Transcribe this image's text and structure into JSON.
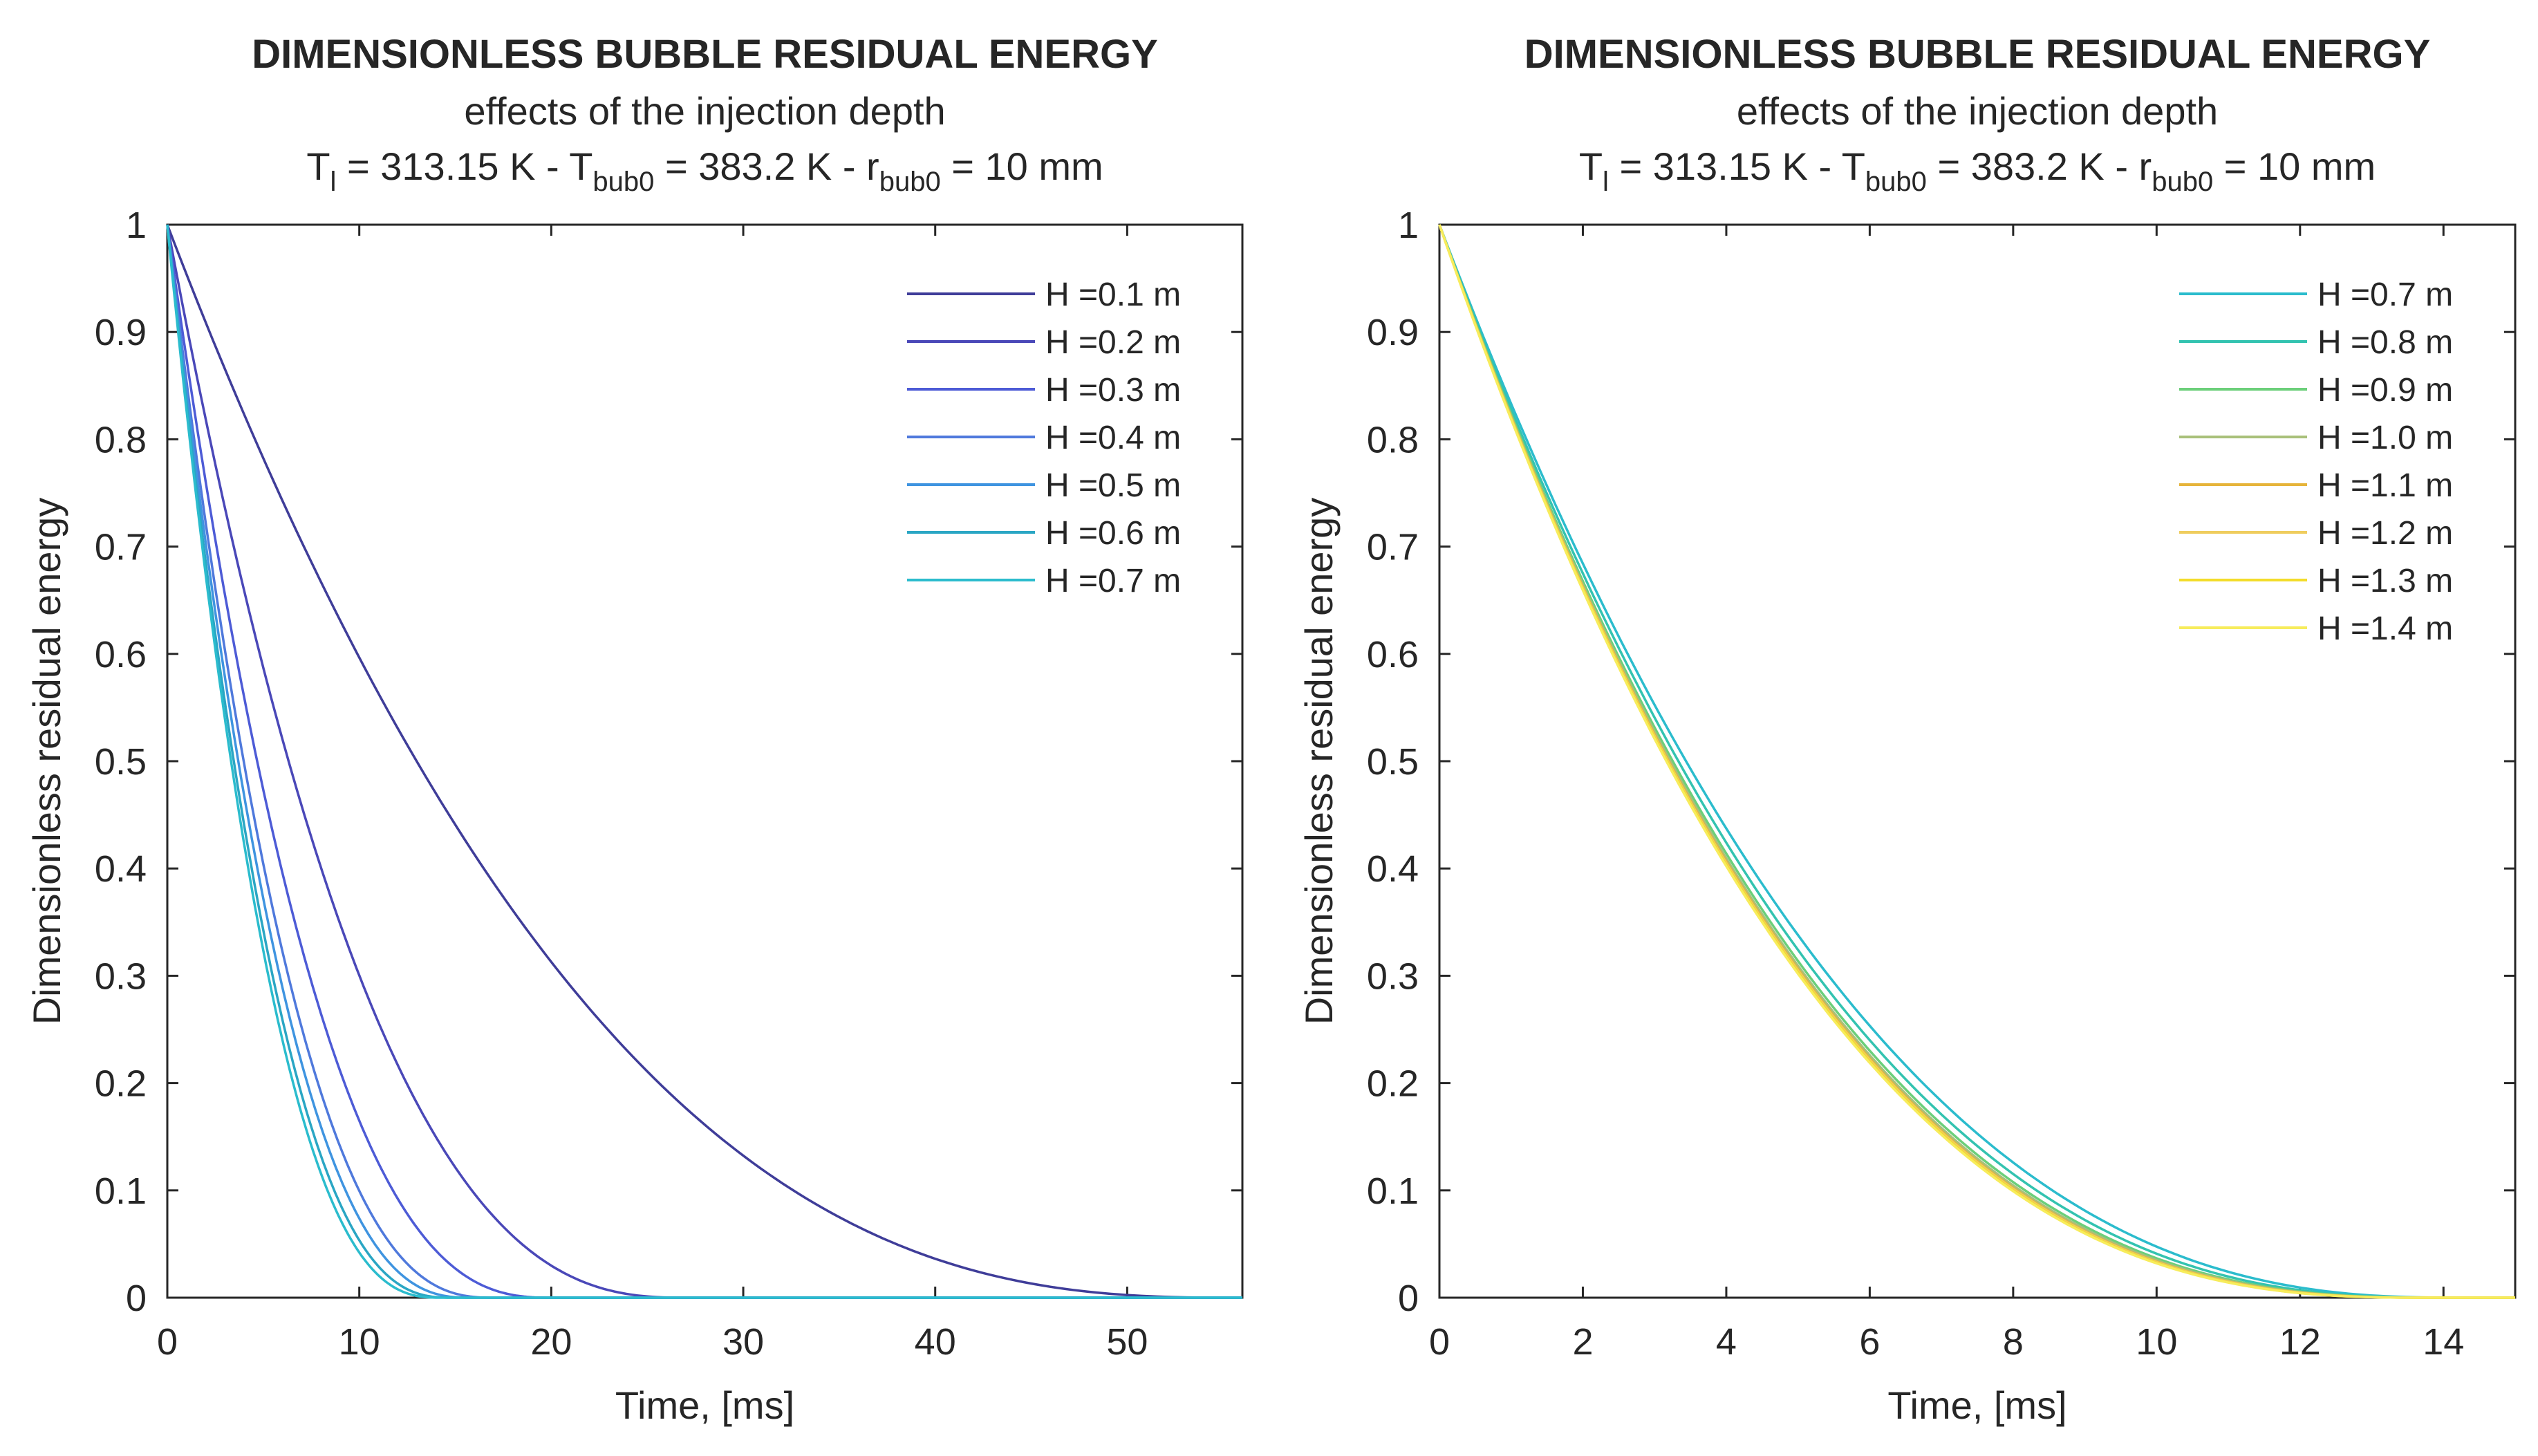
{
  "chart_data": [
    {
      "type": "line",
      "title": "DIMENSIONLESS BUBBLE RESIDUAL ENERGY",
      "subtitle": "effects of the injection depth",
      "conditions": {
        "t_prefix": "T",
        "t_sub": "l",
        "t_value": " = 313.15 K - ",
        "tb_prefix": "T",
        "tb_sub": "bub0",
        "tb_value": " = 383.2 K - ",
        "r_prefix": "r",
        "r_sub": "bub0",
        "r_value": " = 10 mm"
      },
      "xlabel": "Time, [ms]",
      "ylabel": "Dimensionless residual energy",
      "xlim": [
        0,
        56
      ],
      "ylim": [
        0,
        1
      ],
      "xticks": [
        0,
        10,
        20,
        30,
        40,
        50
      ],
      "yticks": [
        0,
        0.1,
        0.2,
        0.3,
        0.4,
        0.5,
        0.6,
        0.7,
        0.8,
        0.9,
        1
      ],
      "legend_position": "top-right",
      "series": [
        {
          "name": "H =0.1 m",
          "end_time": 55.5,
          "exponent": 2.6,
          "color": "#3f3d99"
        },
        {
          "name": "H =0.2 m",
          "end_time": 27.0,
          "exponent": 2.6,
          "color": "#4a48b8"
        },
        {
          "name": "H =0.3 m",
          "end_time": 20.0,
          "exponent": 2.6,
          "color": "#4d5bd6"
        },
        {
          "name": "H =0.4 m",
          "end_time": 17.0,
          "exponent": 2.6,
          "color": "#4f79dc"
        },
        {
          "name": "H =0.5 m",
          "end_time": 15.8,
          "exponent": 2.6,
          "color": "#3f94e0"
        },
        {
          "name": "H =0.6 m",
          "end_time": 14.8,
          "exponent": 2.6,
          "color": "#2aa6c4"
        },
        {
          "name": "H =0.7 m",
          "end_time": 14.2,
          "exponent": 2.6,
          "color": "#2bbccd"
        }
      ]
    },
    {
      "type": "line",
      "title": "DIMENSIONLESS BUBBLE RESIDUAL ENERGY",
      "subtitle": "effects of the injection depth",
      "conditions": {
        "t_prefix": "T",
        "t_sub": "l",
        "t_value": " = 313.15 K - ",
        "tb_prefix": "T",
        "tb_sub": "bub0",
        "tb_value": " = 383.2 K - ",
        "r_prefix": "r",
        "r_sub": "bub0",
        "r_value": " = 10 mm"
      },
      "xlabel": "Time, [ms]",
      "ylabel": "Dimensionless residual energy",
      "xlim": [
        0,
        15
      ],
      "ylim": [
        0,
        1
      ],
      "xticks": [
        0,
        2,
        4,
        6,
        8,
        10,
        12,
        14
      ],
      "yticks": [
        0,
        0.1,
        0.2,
        0.3,
        0.4,
        0.5,
        0.6,
        0.7,
        0.8,
        0.9,
        1
      ],
      "legend_position": "top-right",
      "series": [
        {
          "name": "H =0.7 m",
          "end_time": 14.2,
          "exponent": 2.5,
          "color": "#2bbccd"
        },
        {
          "name": "H =0.8 m",
          "end_time": 14.0,
          "exponent": 2.55,
          "color": "#33c3b0"
        },
        {
          "name": "H =0.9 m",
          "end_time": 13.9,
          "exponent": 2.6,
          "color": "#6ccf7a"
        },
        {
          "name": "H =1.0 m",
          "end_time": 13.85,
          "exponent": 2.62,
          "color": "#a9c07a"
        },
        {
          "name": "H =1.1 m",
          "end_time": 13.8,
          "exponent": 2.63,
          "color": "#e6b43a"
        },
        {
          "name": "H =1.2 m",
          "end_time": 13.8,
          "exponent": 2.64,
          "color": "#efcd5e"
        },
        {
          "name": "H =1.3 m",
          "end_time": 13.75,
          "exponent": 2.64,
          "color": "#f3dc2a"
        },
        {
          "name": "H =1.4 m",
          "end_time": 13.75,
          "exponent": 2.65,
          "color": "#f7ec5c"
        }
      ]
    }
  ]
}
